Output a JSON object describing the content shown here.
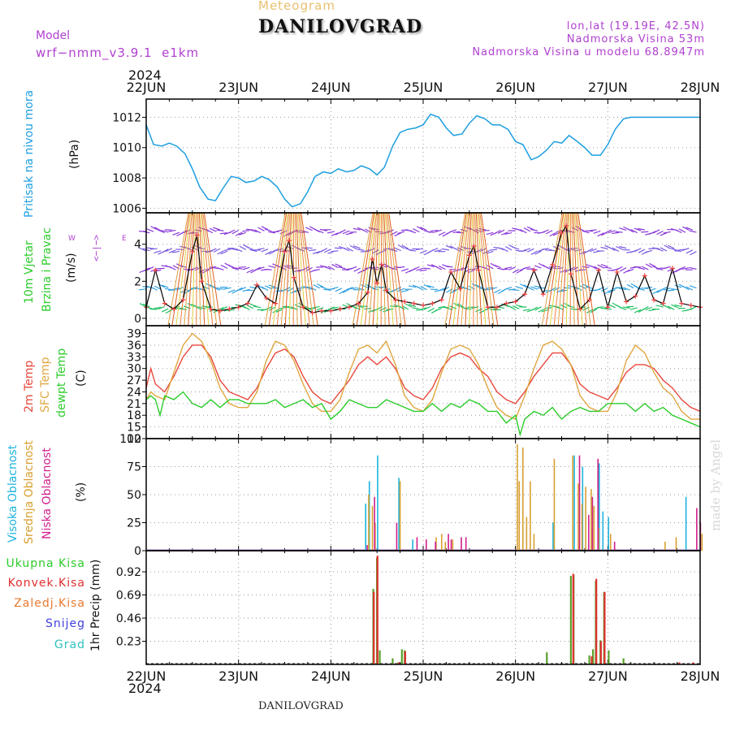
{
  "header": {
    "meteogram_label": "Meteogram",
    "title": "DANILOVGRAD",
    "model_label": "Model",
    "model_name": "wrf−nmm_v3.9.1  e1km",
    "coords": "lon,lat (19.19E, 42.5N)",
    "elevation": "Nadmorska Visina 53m",
    "model_elevation": "Nadmorska Visina u modelu 68.8947m",
    "year_top": "2024",
    "year_bottom": "2024",
    "footer": "DANILOVGRAD",
    "credit": "made by Angel"
  },
  "colors": {
    "pressure": "#1e9fe0",
    "temp2m": "#e8473e",
    "sfc_temp": "#e0a640",
    "dewpt": "#2bcc2b",
    "high_cloud": "#1eb4dc",
    "mid_cloud": "#d8a030",
    "low_cloud": "#d0208c",
    "total_precip": "#5aa02a",
    "conv_precip": "#e03030",
    "snow": "#4040e0",
    "grad": "#30c0c0",
    "wind_purple": "#8a3ad8",
    "wind_label": "#b040d0"
  },
  "panels": {
    "pressure": {
      "label": "Pritisak na nivou mora",
      "unit": "(hPa)"
    },
    "wind": {
      "label1": "10m Vjetar",
      "label2": "Brzina i Pravac",
      "unit": "(m/s)",
      "compass_w": "W",
      "compass_e": "E",
      "compass_arrows": "<−|−>"
    },
    "temp": {
      "label1": "2m Temp",
      "label2": "SFC Temp",
      "label3": "dewpt Temp",
      "unit": "(C)"
    },
    "cloud": {
      "label1": "Visoka Oblacnost",
      "label2": "Srednja Oblacnost",
      "label3": "Niska Oblacnost",
      "unit": "(%)"
    },
    "precip": {
      "legend": [
        "Ukupna Kisa",
        "Konvek.Kisa",
        "Zaledj.Kisa",
        "Snijeg",
        "Grad"
      ],
      "ylabel": "1hr Precip (mm)"
    }
  },
  "chart_data": [
    {
      "type": "line",
      "title": "",
      "ylabel": "Pritisak na nivou mora (hPa)",
      "categories": [
        "22JUN",
        "23JUN",
        "24JUN",
        "25JUN",
        "26JUN",
        "27JUN",
        "28JUN"
      ],
      "ylim": [
        1005.7,
        1013.2
      ],
      "yticks": [
        1006,
        1008,
        1010,
        1012
      ],
      "series": [
        {
          "name": "Pritisak na nivou mora",
          "x": [
            0,
            0.08,
            0.17,
            0.25,
            0.33,
            0.42,
            0.5,
            0.58,
            0.67,
            0.75,
            0.83,
            0.92,
            1.0,
            1.08,
            1.17,
            1.25,
            1.33,
            1.42,
            1.5,
            1.58,
            1.67,
            1.75,
            1.83,
            1.92,
            2.0,
            2.08,
            2.17,
            2.25,
            2.33,
            2.42,
            2.5,
            2.58,
            2.67,
            2.75,
            2.83,
            2.92,
            3.0,
            3.08,
            3.17,
            3.25,
            3.33,
            3.42,
            3.5,
            3.58,
            3.67,
            3.75,
            3.83,
            3.92,
            4.0,
            4.08,
            4.17,
            4.25,
            4.33,
            4.42,
            4.5,
            4.58,
            4.67,
            4.75,
            4.83,
            4.92,
            5.0,
            5.08,
            5.17,
            5.25,
            5.33,
            5.42,
            5.5,
            5.58,
            5.67,
            5.75,
            5.83,
            5.92,
            6.0
          ],
          "values": [
            1011.5,
            1010.2,
            1010.1,
            1010.3,
            1010.1,
            1009.6,
            1008.6,
            1007.4,
            1006.6,
            1006.5,
            1007.3,
            1008.1,
            1008.0,
            1007.7,
            1007.8,
            1008.1,
            1007.9,
            1007.4,
            1006.6,
            1006.1,
            1006.3,
            1007.1,
            1008.1,
            1008.4,
            1008.3,
            1008.6,
            1008.4,
            1008.5,
            1008.8,
            1008.6,
            1008.2,
            1008.7,
            1010.1,
            1011.0,
            1011.2,
            1011.3,
            1011.5,
            1012.2,
            1012.0,
            1011.3,
            1010.8,
            1010.9,
            1011.6,
            1012.1,
            1011.9,
            1011.5,
            1011.5,
            1011.2,
            1010.4,
            1010.2,
            1009.2,
            1009.4,
            1009.8,
            1010.4,
            1010.3,
            1010.8,
            1010.4,
            1010.0,
            1009.5,
            1009.5,
            1010.2,
            1011.2,
            1011.9,
            1012.0,
            1012.0,
            1012.0,
            1012.0,
            1012.0,
            1012.0,
            1012.0,
            1012.0,
            1012.0,
            1012.0
          ]
        }
      ]
    },
    {
      "type": "line",
      "title": "",
      "ylabel": "10m Vjetar Brzina i Pravac (m/s)",
      "categories": [
        "22JUN",
        "23JUN",
        "24JUN",
        "25JUN",
        "26JUN",
        "27JUN",
        "28JUN"
      ],
      "ylim": [
        -0.4,
        5.7
      ],
      "yticks": [
        0,
        2,
        4
      ],
      "series": [
        {
          "name": "10m Vjetar",
          "x": [
            0,
            0.1,
            0.2,
            0.3,
            0.4,
            0.5,
            0.55,
            0.6,
            0.7,
            0.8,
            0.9,
            1.0,
            1.1,
            1.2,
            1.3,
            1.4,
            1.5,
            1.55,
            1.6,
            1.7,
            1.8,
            1.9,
            2.0,
            2.1,
            2.2,
            2.3,
            2.4,
            2.45,
            2.5,
            2.55,
            2.6,
            2.7,
            2.8,
            2.9,
            3.0,
            3.1,
            3.2,
            3.3,
            3.4,
            3.5,
            3.55,
            3.6,
            3.7,
            3.8,
            3.9,
            4.0,
            4.1,
            4.2,
            4.3,
            4.4,
            4.5,
            4.55,
            4.6,
            4.7,
            4.8,
            4.9,
            5.0,
            5.1,
            5.2,
            5.3,
            5.4,
            5.5,
            5.6,
            5.7,
            5.8,
            5.9,
            6.0
          ],
          "values": [
            0.6,
            2.6,
            0.8,
            0.5,
            1.0,
            3.6,
            4.5,
            2.0,
            0.5,
            0.4,
            0.5,
            0.6,
            0.8,
            1.8,
            1.1,
            0.8,
            3.6,
            4.2,
            2.2,
            0.6,
            0.3,
            0.4,
            0.4,
            0.5,
            0.6,
            0.8,
            1.4,
            3.2,
            1.9,
            2.9,
            1.5,
            1.0,
            0.9,
            0.8,
            0.7,
            0.8,
            1.0,
            2.5,
            1.6,
            3.4,
            3.9,
            2.6,
            0.6,
            0.6,
            0.8,
            0.9,
            1.3,
            2.6,
            1.3,
            2.9,
            4.6,
            5.0,
            2.4,
            0.5,
            1.0,
            2.6,
            0.6,
            2.5,
            0.9,
            1.2,
            2.3,
            1.0,
            0.8,
            2.7,
            0.8,
            0.7,
            0.6
          ]
        }
      ]
    },
    {
      "type": "line",
      "title": "",
      "ylabel": "(C)",
      "categories": [
        "22JUN",
        "23JUN",
        "24JUN",
        "25JUN",
        "26JUN",
        "27JUN",
        "28JUN"
      ],
      "ylim": [
        12,
        41
      ],
      "yticks": [
        12,
        15,
        18,
        21,
        24,
        27,
        30,
        33,
        36,
        39
      ],
      "series": [
        {
          "name": "2m Temp",
          "x": [
            0,
            0.05,
            0.1,
            0.2,
            0.3,
            0.4,
            0.5,
            0.6,
            0.7,
            0.8,
            0.9,
            1.0,
            1.1,
            1.2,
            1.3,
            1.4,
            1.5,
            1.6,
            1.7,
            1.8,
            1.9,
            2.0,
            2.1,
            2.2,
            2.3,
            2.4,
            2.5,
            2.6,
            2.7,
            2.8,
            2.9,
            3.0,
            3.1,
            3.2,
            3.3,
            3.4,
            3.5,
            3.6,
            3.7,
            3.8,
            3.9,
            4.0,
            4.1,
            4.2,
            4.3,
            4.4,
            4.5,
            4.6,
            4.7,
            4.8,
            4.9,
            5.0,
            5.1,
            5.2,
            5.3,
            5.4,
            5.5,
            5.6,
            5.7,
            5.8,
            5.9,
            6.0
          ],
          "values": [
            25,
            30,
            26,
            24,
            28,
            33,
            36,
            36,
            33,
            27,
            24,
            23,
            22,
            25,
            30,
            34,
            35,
            33,
            28,
            24,
            22,
            21,
            24,
            27,
            31,
            33,
            31,
            33,
            30,
            25,
            23,
            22,
            25,
            30,
            33,
            34,
            33,
            30,
            28,
            24,
            22,
            21,
            24,
            28,
            31,
            34,
            34,
            31,
            26,
            24,
            23,
            22,
            25,
            29,
            31,
            31,
            30,
            27,
            25,
            22,
            20,
            19
          ]
        },
        {
          "name": "SFC Temp",
          "x": [
            0,
            0.05,
            0.1,
            0.2,
            0.3,
            0.4,
            0.5,
            0.6,
            0.7,
            0.8,
            0.9,
            1.0,
            1.1,
            1.2,
            1.3,
            1.4,
            1.5,
            1.6,
            1.7,
            1.8,
            1.9,
            2.0,
            2.1,
            2.2,
            2.3,
            2.4,
            2.5,
            2.6,
            2.7,
            2.8,
            2.9,
            3.0,
            3.1,
            3.2,
            3.3,
            3.4,
            3.5,
            3.6,
            3.7,
            3.8,
            3.9,
            4.0,
            4.1,
            4.2,
            4.3,
            4.4,
            4.5,
            4.6,
            4.7,
            4.8,
            4.9,
            5.0,
            5.1,
            5.2,
            5.3,
            5.4,
            5.5,
            5.6,
            5.7,
            5.8,
            5.9,
            6.0
          ],
          "values": [
            22,
            24,
            23,
            22,
            29,
            36,
            39,
            37,
            32,
            25,
            21,
            20,
            20,
            24,
            32,
            37,
            36,
            32,
            26,
            21,
            19,
            19,
            22,
            29,
            35,
            36,
            34,
            37,
            31,
            23,
            20,
            19,
            22,
            29,
            35,
            36,
            35,
            31,
            25,
            20,
            18,
            17,
            23,
            30,
            36,
            37,
            35,
            31,
            23,
            20,
            19,
            19,
            24,
            32,
            36,
            34,
            29,
            25,
            23,
            19,
            17,
            17
          ]
        },
        {
          "name": "dewpt Temp",
          "x": [
            0,
            0.05,
            0.1,
            0.15,
            0.2,
            0.3,
            0.4,
            0.5,
            0.6,
            0.7,
            0.8,
            0.9,
            1.0,
            1.1,
            1.2,
            1.3,
            1.4,
            1.5,
            1.6,
            1.7,
            1.8,
            1.9,
            2.0,
            2.1,
            2.2,
            2.3,
            2.4,
            2.5,
            2.6,
            2.7,
            2.8,
            2.9,
            3.0,
            3.1,
            3.2,
            3.3,
            3.4,
            3.5,
            3.6,
            3.7,
            3.8,
            3.9,
            4.0,
            4.05,
            4.1,
            4.2,
            4.3,
            4.4,
            4.5,
            4.6,
            4.7,
            4.8,
            4.9,
            5.0,
            5.1,
            5.2,
            5.3,
            5.4,
            5.5,
            5.6,
            5.7,
            5.8,
            5.9,
            6.0
          ],
          "values": [
            22,
            23,
            22,
            18,
            23,
            22,
            24,
            21,
            20,
            22,
            20,
            22,
            22,
            21,
            21,
            21,
            22,
            20,
            21,
            22,
            20,
            21,
            17,
            19,
            22,
            21,
            20,
            20,
            22,
            21,
            20,
            19,
            19,
            21,
            19,
            21,
            20,
            22,
            21,
            19,
            19,
            16,
            18,
            13,
            17,
            19,
            18,
            20,
            17,
            19,
            20,
            19,
            19,
            21,
            21,
            21,
            19,
            21,
            19,
            20,
            18,
            17,
            16,
            15
          ]
        }
      ]
    },
    {
      "type": "bar",
      "title": "",
      "ylabel": "(%)",
      "categories": [
        "22JUN",
        "23JUN",
        "24JUN",
        "25JUN",
        "26JUN",
        "27JUN",
        "28JUN"
      ],
      "ylim": [
        0,
        100
      ],
      "yticks": [
        0,
        25,
        50,
        75,
        100
      ],
      "series": [
        {
          "name": "Visoka Oblacnost",
          "x": [
            2.37,
            2.41,
            2.5,
            2.73,
            2.88,
            4.4,
            4.63,
            4.72,
            4.9,
            4.94,
            5.0,
            5.84
          ],
          "values": [
            42,
            62,
            85,
            65,
            10,
            25,
            85,
            75,
            78,
            35,
            30,
            48
          ]
        },
        {
          "name": "Srednja Oblacnost",
          "x": [
            2.39,
            2.43,
            2.46,
            2.73,
            3.12,
            3.18,
            3.22,
            3.3,
            4.0,
            4.02,
            4.06,
            4.1,
            4.14,
            4.18,
            4.4,
            4.6,
            4.66,
            4.7,
            4.74,
            4.8,
            4.83,
            4.88,
            5.01,
            5.6,
            5.72,
            6.0
          ],
          "values": [
            50,
            40,
            25,
            62,
            12,
            15,
            8,
            10,
            95,
            62,
            92,
            30,
            62,
            15,
            82,
            85,
            60,
            42,
            57,
            55,
            40,
            20,
            15,
            8,
            12,
            15
          ]
        },
        {
          "name": "Niska Oblacnost",
          "x": [
            2.36,
            2.44,
            2.68,
            2.9,
            3.0,
            3.1,
            3.24,
            3.27,
            3.38,
            3.43,
            4.66,
            4.76,
            4.8,
            4.86,
            5.04,
            5.93,
            5.97
          ],
          "values": [
            5,
            48,
            25,
            12,
            10,
            8,
            15,
            10,
            12,
            12,
            85,
            32,
            48,
            82,
            8,
            38,
            25
          ]
        }
      ]
    },
    {
      "type": "bar",
      "title": "",
      "ylabel": "1hr Precip (mm)",
      "categories": [
        "22JUN",
        "23JUN",
        "24JUN",
        "25JUN",
        "26JUN",
        "27JUN",
        "28JUN"
      ],
      "ylim": [
        0,
        1.13
      ],
      "yticks": [
        0.23,
        0.46,
        0.69,
        0.92
      ],
      "series": [
        {
          "name": "Ukupna Kisa",
          "x": [
            2.45,
            2.49,
            2.52,
            2.66,
            2.72,
            2.76,
            2.79,
            4.33,
            4.59,
            4.62,
            4.79,
            4.83,
            4.86,
            4.91,
            4.95,
            5.0,
            5.16
          ],
          "values": [
            0.75,
            1.06,
            0.14,
            0.06,
            0.02,
            0.15,
            0.14,
            0.12,
            0.88,
            0.89,
            0.09,
            0.15,
            0.83,
            0.24,
            0.72,
            0.14,
            0.06
          ]
        },
        {
          "name": "Konvek.Kisa",
          "x": [
            2.44,
            2.48,
            2.71,
            2.78,
            4.6,
            4.8,
            4.85,
            4.9,
            4.94,
            5.75,
            5.9
          ],
          "values": [
            0.72,
            1.08,
            0.02,
            0.13,
            0.9,
            0.08,
            0.85,
            0.23,
            0.72,
            0.02,
            0.02
          ]
        }
      ]
    }
  ]
}
